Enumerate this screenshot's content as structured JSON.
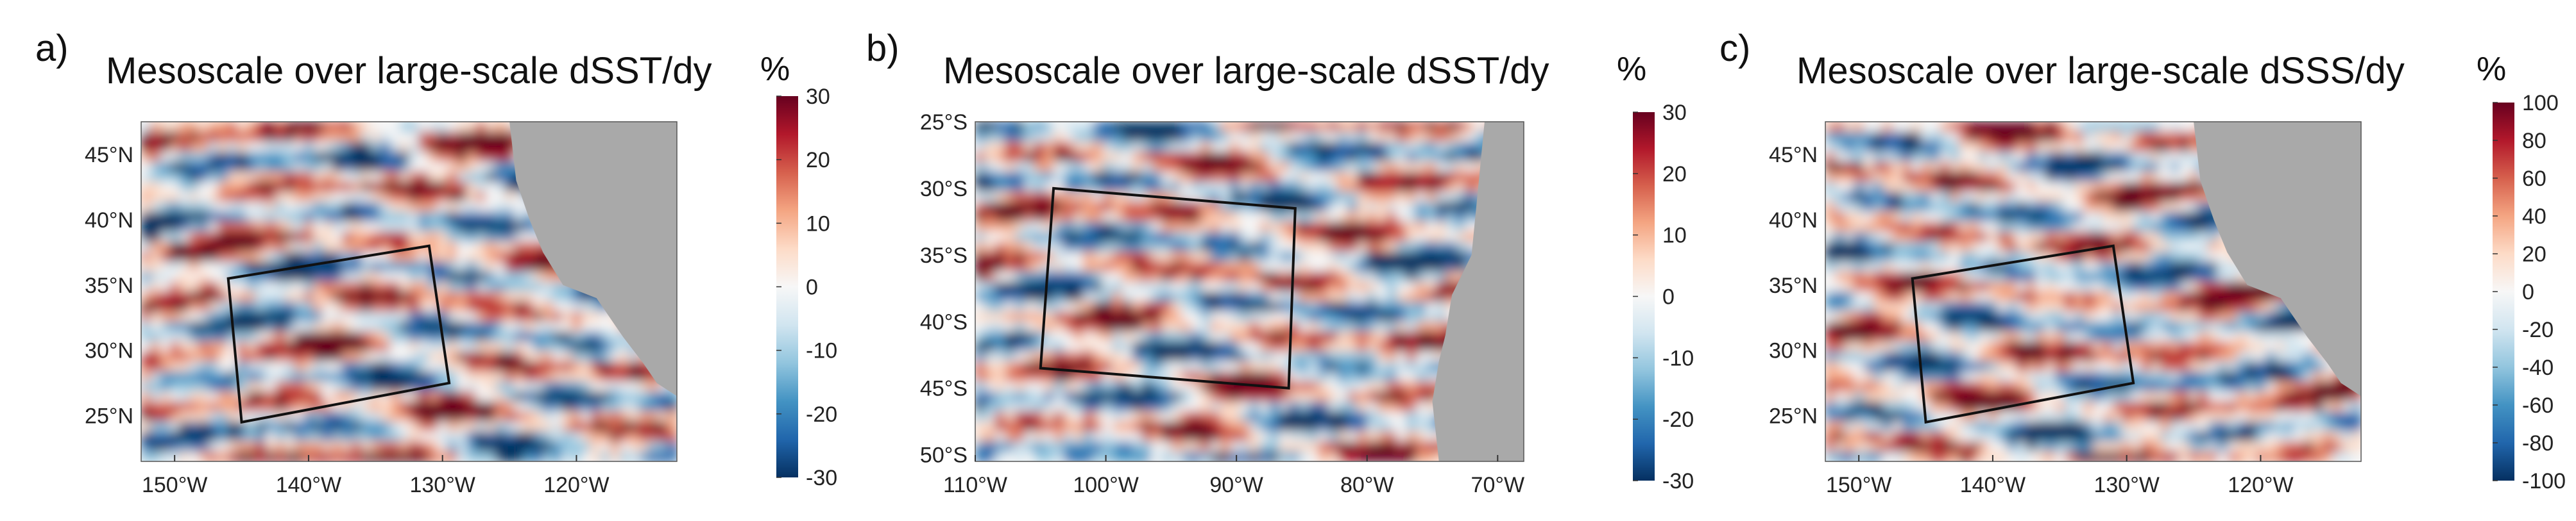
{
  "figure": {
    "land_color": "#a9a9a9",
    "colormap": [
      "#053061",
      "#2166ac",
      "#4393c3",
      "#92c5de",
      "#d1e5f0",
      "#f7f7f7",
      "#fddbc7",
      "#f4a582",
      "#d6604d",
      "#b2182b",
      "#67001f"
    ]
  },
  "chart_data": [
    {
      "type": "heatmap",
      "panel_label": "a)",
      "title": "Mesoscale over large-scale dSST/dy",
      "colorbar": {
        "unit": "%",
        "range": [
          -30,
          30
        ],
        "ticks": [
          "30",
          "20",
          "10",
          "0",
          "-10",
          "-20",
          "-30"
        ]
      },
      "x_ticks": [
        "150°W",
        "140°W",
        "130°W",
        "120°W"
      ],
      "y_ticks": [
        "45°N",
        "40°N",
        "35°N",
        "30°N",
        "25°N"
      ],
      "xlim": [
        -152.5,
        -112.5
      ],
      "ylim": [
        21.5,
        47.5
      ],
      "study_box_lonlat": [
        [
          -146,
          35.5
        ],
        [
          -131,
          38
        ],
        [
          -129.5,
          27.5
        ],
        [
          -145,
          24.5
        ]
      ],
      "coastline_lonlat": [
        [
          -125,
          47.5
        ],
        [
          -124.5,
          43
        ],
        [
          -123.5,
          40
        ],
        [
          -122.5,
          37.5
        ],
        [
          -121,
          35
        ],
        [
          -118.5,
          34
        ],
        [
          -117.5,
          32.5
        ],
        [
          -116.5,
          31
        ],
        [
          -115,
          29
        ],
        [
          -114,
          27.5
        ],
        [
          -112.5,
          26.5
        ],
        [
          -112.5,
          47.5
        ]
      ]
    },
    {
      "type": "heatmap",
      "panel_label": "b)",
      "title": "Mesoscale over large-scale dSST/dy",
      "colorbar": {
        "unit": "%",
        "range": [
          -30,
          30
        ],
        "ticks": [
          "30",
          "20",
          "10",
          "0",
          "-10",
          "-20",
          "-30"
        ]
      },
      "x_ticks": [
        "110°W",
        "100°W",
        "90°W",
        "80°W",
        "70°W"
      ],
      "y_ticks": [
        "25°S",
        "30°S",
        "35°S",
        "40°S",
        "45°S",
        "50°S"
      ],
      "xlim": [
        -110,
        -68
      ],
      "ylim": [
        -50.5,
        -25
      ],
      "study_box_lonlat": [
        [
          -104,
          -30
        ],
        [
          -85.5,
          -31.5
        ],
        [
          -86,
          -45
        ],
        [
          -105,
          -43.5
        ]
      ],
      "coastline_lonlat": [
        [
          -71,
          -25
        ],
        [
          -71.5,
          -30
        ],
        [
          -72,
          -35
        ],
        [
          -73.5,
          -38
        ],
        [
          -74,
          -41
        ],
        [
          -74.5,
          -43
        ],
        [
          -75,
          -46
        ],
        [
          -74.5,
          -50.5
        ],
        [
          -68,
          -50.5
        ],
        [
          -68,
          -25
        ]
      ]
    },
    {
      "type": "heatmap",
      "panel_label": "c)",
      "title": "Mesoscale over large-scale dSSS/dy",
      "colorbar": {
        "unit": "%",
        "range": [
          -100,
          100
        ],
        "ticks": [
          "100",
          "80",
          "60",
          "40",
          "20",
          "0",
          "-20",
          "-40",
          "-60",
          "-80",
          "-100"
        ]
      },
      "x_ticks": [
        "150°W",
        "140°W",
        "130°W",
        "120°W"
      ],
      "y_ticks": [
        "45°N",
        "40°N",
        "35°N",
        "30°N",
        "25°N"
      ],
      "xlim": [
        -152.5,
        -112.5
      ],
      "ylim": [
        21.5,
        47.5
      ],
      "study_box_lonlat": [
        [
          -146,
          35.5
        ],
        [
          -131,
          38
        ],
        [
          -129.5,
          27.5
        ],
        [
          -145,
          24.5
        ]
      ],
      "coastline_lonlat": [
        [
          -125,
          47.5
        ],
        [
          -124.5,
          43
        ],
        [
          -123.5,
          40
        ],
        [
          -122.5,
          37.5
        ],
        [
          -121,
          35
        ],
        [
          -118.5,
          34
        ],
        [
          -117.5,
          32.5
        ],
        [
          -116.5,
          31
        ],
        [
          -115,
          29
        ],
        [
          -114,
          27.5
        ],
        [
          -112.5,
          26.5
        ],
        [
          -112.5,
          47.5
        ]
      ]
    }
  ]
}
